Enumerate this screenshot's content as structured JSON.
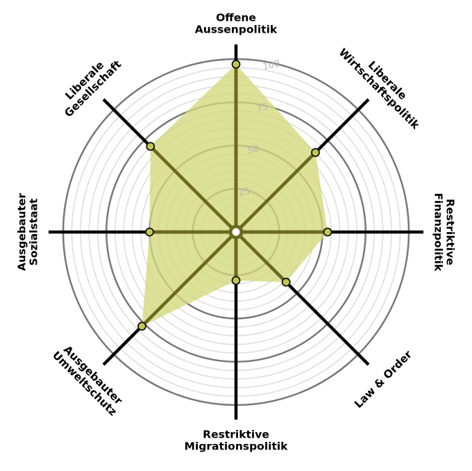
{
  "chart_data": {
    "type": "radar",
    "axes": [
      {
        "label_lines": [
          "Offene",
          "Aussenpolitik"
        ]
      },
      {
        "label_lines": [
          "Liberale",
          "Wirtschaftspolitik"
        ]
      },
      {
        "label_lines": [
          "Restriktive",
          "Finanzpolitik"
        ]
      },
      {
        "label_lines": [
          "Law & Order"
        ]
      },
      {
        "label_lines": [
          "Restriktive",
          "Migrationspolitik"
        ]
      },
      {
        "label_lines": [
          "Ausgebauter",
          "Umweltschutz"
        ]
      },
      {
        "label_lines": [
          "Ausgebauter",
          "Sozialstaat"
        ]
      },
      {
        "label_lines": [
          "Liberale",
          "Gesellschaft"
        ]
      }
    ],
    "values": [
      97,
      65,
      53,
      41,
      28,
      77,
      50,
      70
    ],
    "range": [
      0,
      100
    ],
    "ticks": [
      25,
      50,
      75,
      100
    ],
    "grid_circles_every": 5,
    "colors": {
      "fill": "#d4d77a",
      "fill_opacity": 0.78,
      "line": "#6b6a1d",
      "marker": "#c3c652",
      "major_ring": "#777777",
      "minor_ring": "#dddddd",
      "axis": "#000000",
      "tick": "#b4b4b4"
    }
  }
}
